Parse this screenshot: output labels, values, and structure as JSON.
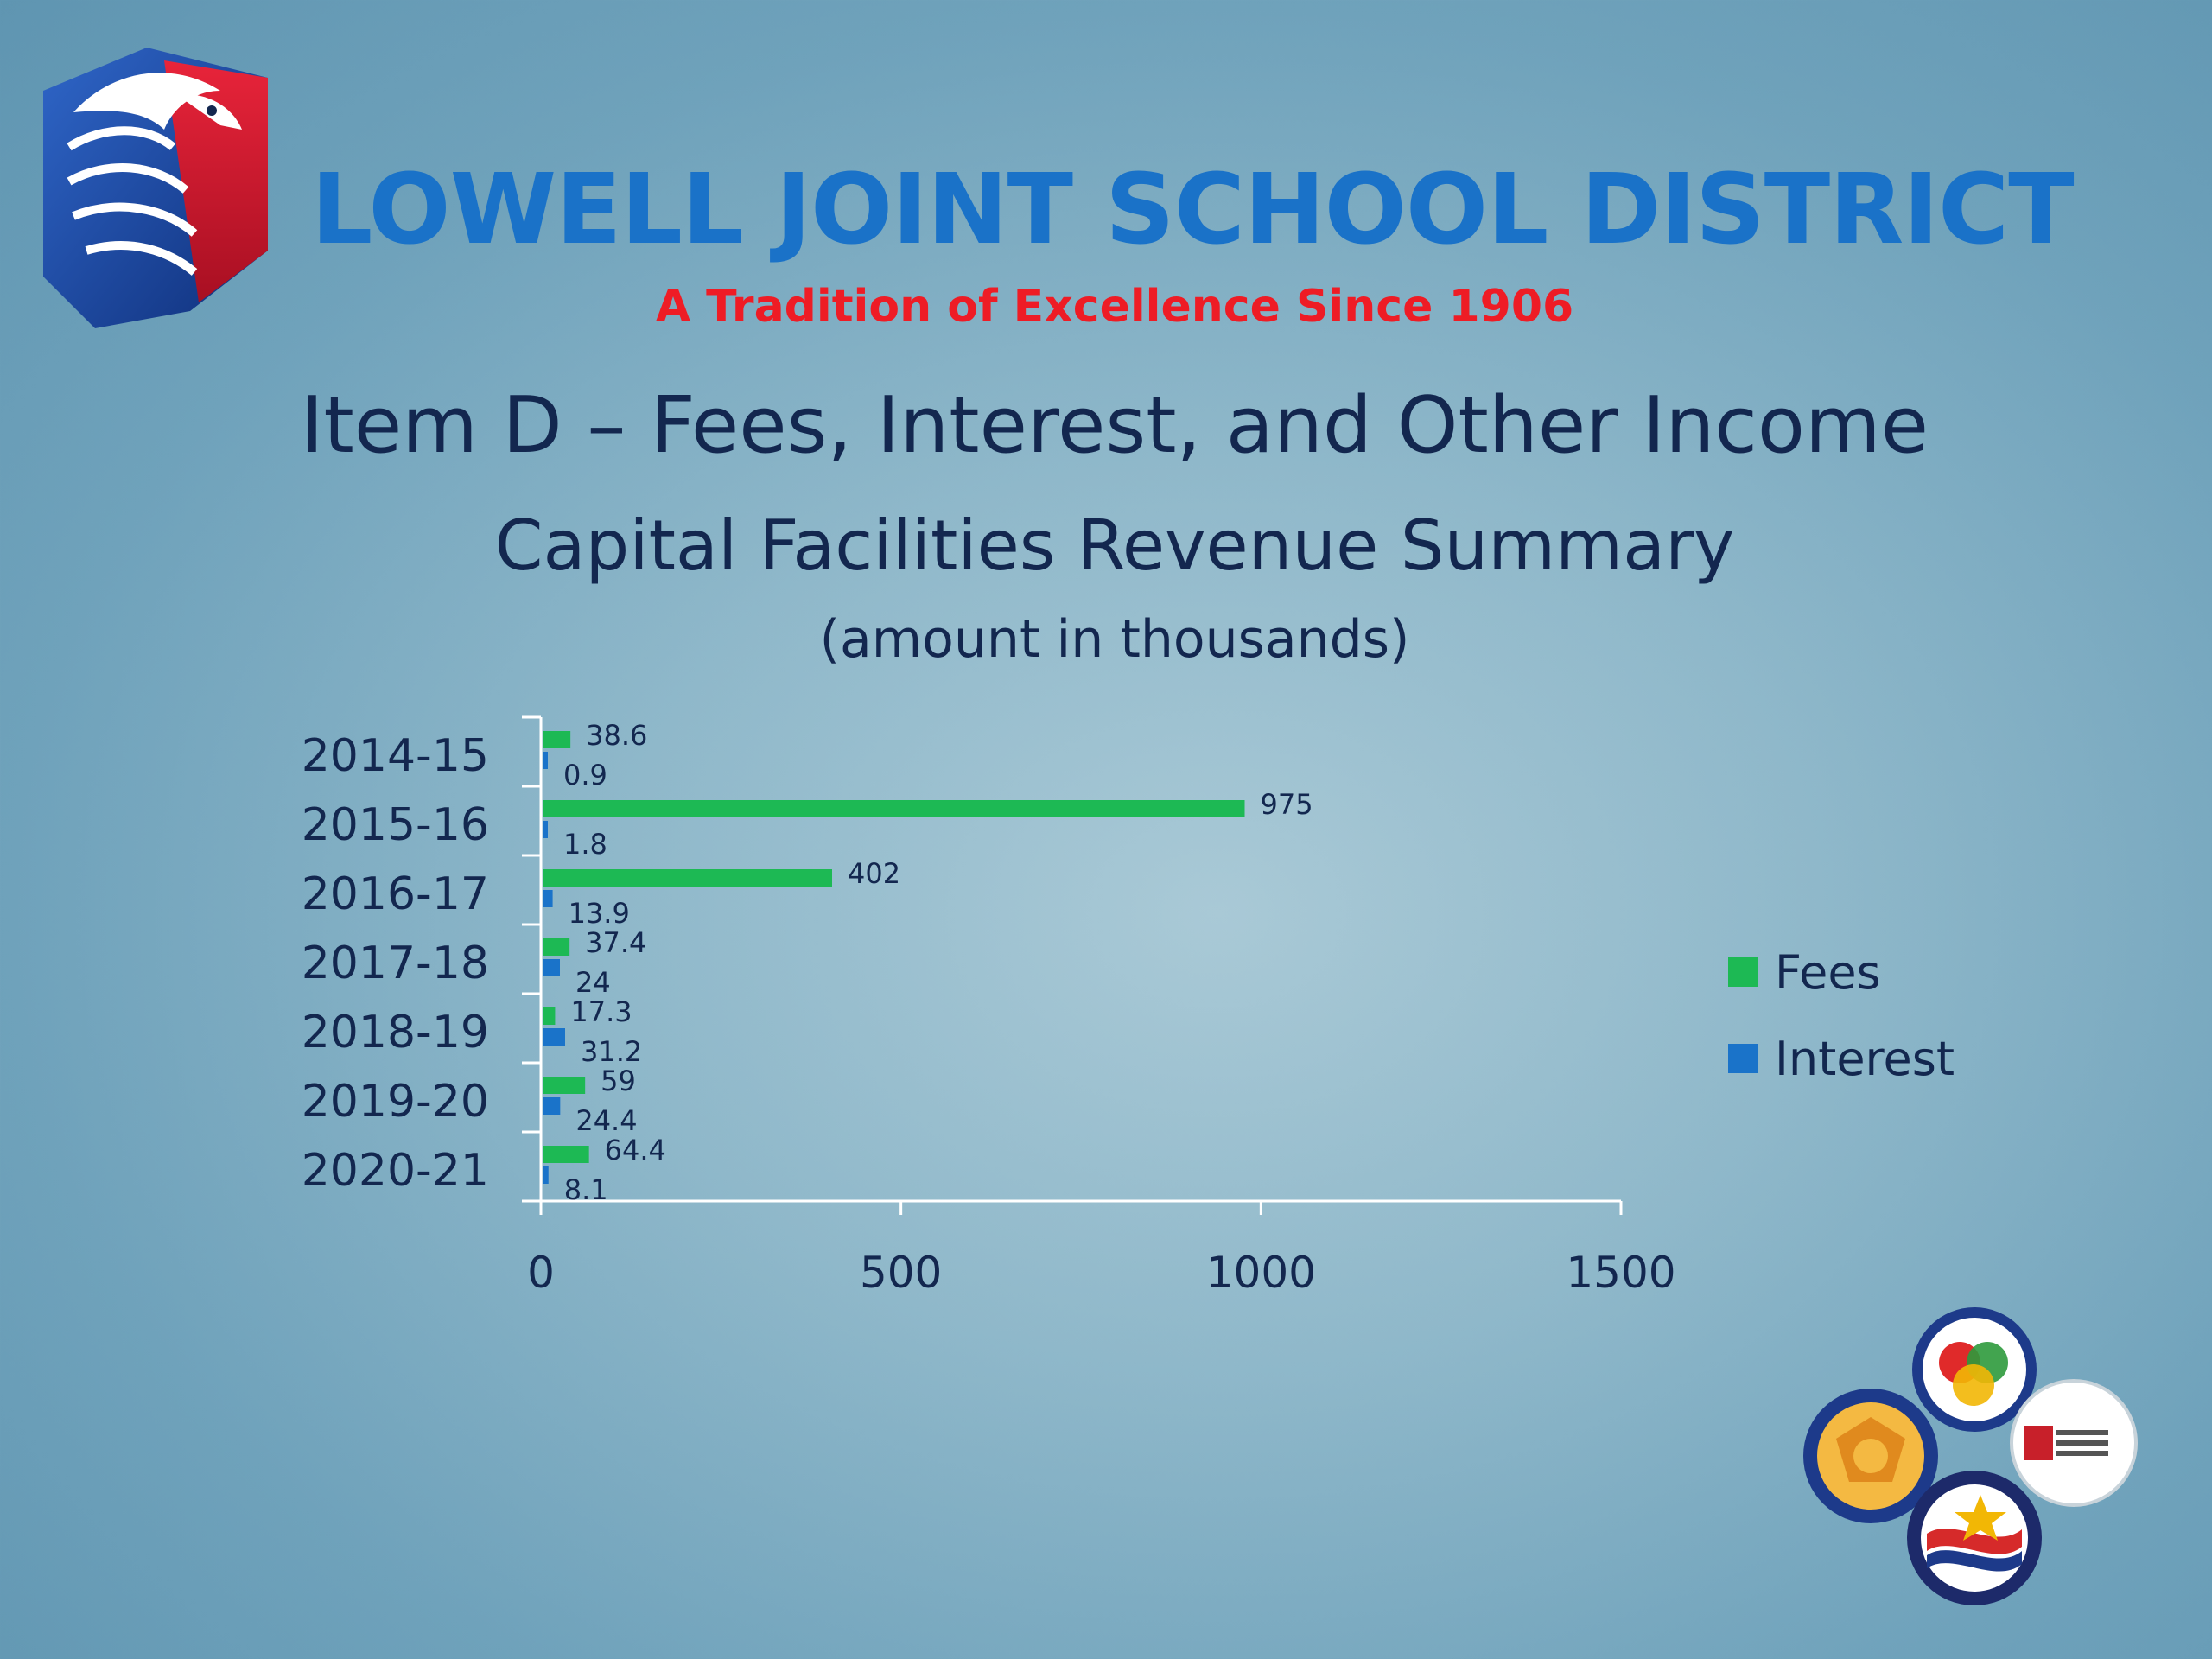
{
  "header": {
    "district_name": "LOWELL JOINT SCHOOL  DISTRICT",
    "tagline": "A Tradition of Excellence Since 1906"
  },
  "slide": {
    "title": "Item D – Fees, Interest, and Other Income",
    "subtitle": "Capital Facilities Revenue Summary",
    "note": "(amount in thousands)"
  },
  "colors": {
    "fees": "#1db954",
    "interest": "#1a73c9",
    "text": "#13274f",
    "axis": "#ffffff"
  },
  "chart_data": {
    "type": "bar",
    "orientation": "horizontal",
    "categories": [
      "2014-15",
      "2015-16",
      "2016-17",
      "2017-18",
      "2018-19",
      "2019-20",
      "2020-21"
    ],
    "series": [
      {
        "name": "Fees",
        "values": [
          38.6,
          975,
          402,
          37.4,
          17.3,
          59,
          64.4
        ]
      },
      {
        "name": "Interest",
        "values": [
          0.9,
          1.8,
          13.9,
          24,
          31.2,
          24.4,
          8.1
        ]
      }
    ],
    "data_labels": {
      "Fees": [
        "38.6",
        "975",
        "402",
        "37.4",
        "17.3",
        "59",
        "64.4"
      ],
      "Interest": [
        "0.9",
        "1.8",
        "13.9",
        "24",
        "31.2",
        "24.4",
        "8.1"
      ]
    },
    "xlim": [
      0,
      1500
    ],
    "xticks": [
      0,
      500,
      1000,
      1500
    ],
    "xtick_labels": [
      "0",
      "500",
      "1000",
      "1500"
    ],
    "legend": [
      "Fees",
      "Interest"
    ],
    "legend_position": "right",
    "grid": false
  }
}
